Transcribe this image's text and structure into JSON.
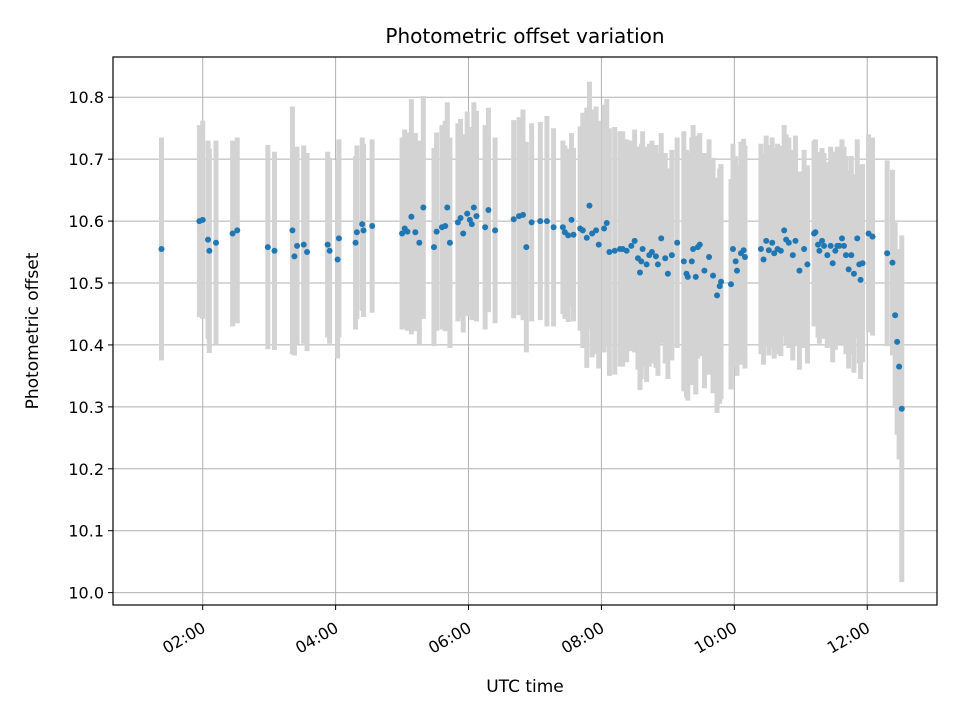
{
  "chart_data": {
    "type": "scatter",
    "title": "Photometric offset variation",
    "xlabel": "UTC time",
    "ylabel": "Photometric offset",
    "xlim": [
      0.65,
      13.05
    ],
    "ylim": [
      9.98,
      10.865
    ],
    "xticks": [
      {
        "value": 2,
        "label": "02:00"
      },
      {
        "value": 4,
        "label": "04:00"
      },
      {
        "value": 6,
        "label": "06:00"
      },
      {
        "value": 8,
        "label": "08:00"
      },
      {
        "value": 10,
        "label": "10:00"
      },
      {
        "value": 12,
        "label": "12:00"
      }
    ],
    "yticks": [
      {
        "value": 10.0,
        "label": "10.0"
      },
      {
        "value": 10.1,
        "label": "10.1"
      },
      {
        "value": 10.2,
        "label": "10.2"
      },
      {
        "value": 10.3,
        "label": "10.3"
      },
      {
        "value": 10.4,
        "label": "10.4"
      },
      {
        "value": 10.5,
        "label": "10.5"
      },
      {
        "value": 10.6,
        "label": "10.6"
      },
      {
        "value": 10.7,
        "label": "10.7"
      },
      {
        "value": 10.8,
        "label": "10.8"
      }
    ],
    "grid": true,
    "colors": {
      "point": "#1f77b4",
      "errorbar": "#d3d3d3",
      "grid": "#b0b0b0"
    },
    "series": [
      {
        "name": "photometric offset",
        "points": [
          [
            1.38,
            10.555,
            0.18
          ],
          [
            1.95,
            10.6,
            0.155
          ],
          [
            2.0,
            10.602,
            0.16
          ],
          [
            2.08,
            10.57,
            0.16
          ],
          [
            2.1,
            10.552,
            0.165
          ],
          [
            2.2,
            10.565,
            0.165
          ],
          [
            2.45,
            10.58,
            0.15
          ],
          [
            2.52,
            10.585,
            0.15
          ],
          [
            2.98,
            10.558,
            0.165
          ],
          [
            3.08,
            10.552,
            0.16
          ],
          [
            3.35,
            10.585,
            0.2
          ],
          [
            3.38,
            10.543,
            0.16
          ],
          [
            3.42,
            10.56,
            0.16
          ],
          [
            3.52,
            10.562,
            0.16
          ],
          [
            3.57,
            10.55,
            0.16
          ],
          [
            3.88,
            10.562,
            0.15
          ],
          [
            3.91,
            10.552,
            0.15
          ],
          [
            4.03,
            10.538,
            0.16
          ],
          [
            4.05,
            10.572,
            0.16
          ],
          [
            4.3,
            10.565,
            0.14
          ],
          [
            4.32,
            10.582,
            0.14
          ],
          [
            4.4,
            10.595,
            0.14
          ],
          [
            4.42,
            10.585,
            0.14
          ],
          [
            4.55,
            10.592,
            0.14
          ],
          [
            5.0,
            10.58,
            0.155
          ],
          [
            5.04,
            10.588,
            0.16
          ],
          [
            5.08,
            10.583,
            0.16
          ],
          [
            5.14,
            10.607,
            0.19
          ],
          [
            5.2,
            10.582,
            0.16
          ],
          [
            5.26,
            10.565,
            0.165
          ],
          [
            5.32,
            10.622,
            0.18
          ],
          [
            5.48,
            10.558,
            0.16
          ],
          [
            5.52,
            10.583,
            0.16
          ],
          [
            5.6,
            10.59,
            0.165
          ],
          [
            5.65,
            10.592,
            0.17
          ],
          [
            5.68,
            10.622,
            0.17
          ],
          [
            5.72,
            10.565,
            0.17
          ],
          [
            5.84,
            10.598,
            0.16
          ],
          [
            5.88,
            10.605,
            0.16
          ],
          [
            5.92,
            10.58,
            0.16
          ],
          [
            5.98,
            10.612,
            0.165
          ],
          [
            6.02,
            10.602,
            0.15
          ],
          [
            6.05,
            10.595,
            0.155
          ],
          [
            6.08,
            10.622,
            0.17
          ],
          [
            6.12,
            10.608,
            0.17
          ],
          [
            6.25,
            10.59,
            0.165
          ],
          [
            6.3,
            10.618,
            0.165
          ],
          [
            6.4,
            10.585,
            0.15
          ],
          [
            6.68,
            10.603,
            0.16
          ],
          [
            6.76,
            10.608,
            0.16
          ],
          [
            6.82,
            10.61,
            0.17
          ],
          [
            6.87,
            10.558,
            0.17
          ],
          [
            6.95,
            10.598,
            0.16
          ],
          [
            7.08,
            10.6,
            0.16
          ],
          [
            7.18,
            10.6,
            0.17
          ],
          [
            7.28,
            10.59,
            0.16
          ],
          [
            7.42,
            10.59,
            0.14
          ],
          [
            7.45,
            10.582,
            0.14
          ],
          [
            7.5,
            10.577,
            0.14
          ],
          [
            7.55,
            10.602,
            0.14
          ],
          [
            7.58,
            10.578,
            0.14
          ],
          [
            7.68,
            10.588,
            0.165
          ],
          [
            7.72,
            10.585,
            0.19
          ],
          [
            7.78,
            10.573,
            0.21
          ],
          [
            7.82,
            10.625,
            0.2
          ],
          [
            7.86,
            10.58,
            0.2
          ],
          [
            7.92,
            10.585,
            0.2
          ],
          [
            7.96,
            10.562,
            0.2
          ],
          [
            8.04,
            10.588,
            0.2
          ],
          [
            8.08,
            10.597,
            0.2
          ],
          [
            8.12,
            10.55,
            0.2
          ],
          [
            8.2,
            10.552,
            0.2
          ],
          [
            8.28,
            10.555,
            0.19
          ],
          [
            8.32,
            10.555,
            0.19
          ],
          [
            8.38,
            10.552,
            0.18
          ],
          [
            8.45,
            10.56,
            0.17
          ],
          [
            8.5,
            10.568,
            0.18
          ],
          [
            8.55,
            10.54,
            0.18
          ],
          [
            8.6,
            10.535,
            0.19
          ],
          [
            8.58,
            10.517,
            0.19
          ],
          [
            8.62,
            10.555,
            0.19
          ],
          [
            8.68,
            10.53,
            0.19
          ],
          [
            8.72,
            10.545,
            0.18
          ],
          [
            8.76,
            10.55,
            0.18
          ],
          [
            8.82,
            10.543,
            0.18
          ],
          [
            8.85,
            10.53,
            0.18
          ],
          [
            8.9,
            10.572,
            0.17
          ],
          [
            8.96,
            10.54,
            0.17
          ],
          [
            9.0,
            10.515,
            0.17
          ],
          [
            9.06,
            10.545,
            0.17
          ],
          [
            9.14,
            10.565,
            0.17
          ],
          [
            9.24,
            10.535,
            0.21
          ],
          [
            9.28,
            10.515,
            0.2
          ],
          [
            9.3,
            10.51,
            0.2
          ],
          [
            9.36,
            10.535,
            0.2
          ],
          [
            9.38,
            10.555,
            0.2
          ],
          [
            9.42,
            10.51,
            0.19
          ],
          [
            9.45,
            10.558,
            0.18
          ],
          [
            9.48,
            10.562,
            0.18
          ],
          [
            9.55,
            10.52,
            0.19
          ],
          [
            9.62,
            10.542,
            0.19
          ],
          [
            9.68,
            10.512,
            0.19
          ],
          [
            9.74,
            10.48,
            0.19
          ],
          [
            9.78,
            10.495,
            0.19
          ],
          [
            9.8,
            10.502,
            0.19
          ],
          [
            9.95,
            10.498,
            0.17
          ],
          [
            9.98,
            10.555,
            0.17
          ],
          [
            10.02,
            10.535,
            0.17
          ],
          [
            10.04,
            10.52,
            0.17
          ],
          [
            10.1,
            10.548,
            0.18
          ],
          [
            10.14,
            10.553,
            0.18
          ],
          [
            10.16,
            10.542,
            0.18
          ],
          [
            10.4,
            10.555,
            0.17
          ],
          [
            10.44,
            10.538,
            0.17
          ],
          [
            10.48,
            10.568,
            0.17
          ],
          [
            10.52,
            10.553,
            0.17
          ],
          [
            10.57,
            10.565,
            0.17
          ],
          [
            10.6,
            10.548,
            0.17
          ],
          [
            10.65,
            10.555,
            0.17
          ],
          [
            10.7,
            10.552,
            0.17
          ],
          [
            10.75,
            10.585,
            0.17
          ],
          [
            10.78,
            10.57,
            0.17
          ],
          [
            10.82,
            10.565,
            0.17
          ],
          [
            10.88,
            10.545,
            0.17
          ],
          [
            10.92,
            10.568,
            0.17
          ],
          [
            10.98,
            10.52,
            0.16
          ],
          [
            11.05,
            10.555,
            0.16
          ],
          [
            11.1,
            10.53,
            0.16
          ],
          [
            11.2,
            10.58,
            0.15
          ],
          [
            11.22,
            10.582,
            0.15
          ],
          [
            11.26,
            10.562,
            0.15
          ],
          [
            11.28,
            10.552,
            0.15
          ],
          [
            11.32,
            10.568,
            0.15
          ],
          [
            11.35,
            10.56,
            0.15
          ],
          [
            11.4,
            10.545,
            0.15
          ],
          [
            11.45,
            10.56,
            0.16
          ],
          [
            11.48,
            10.532,
            0.16
          ],
          [
            11.52,
            10.552,
            0.16
          ],
          [
            11.55,
            10.56,
            0.16
          ],
          [
            11.58,
            10.56,
            0.16
          ],
          [
            11.62,
            10.572,
            0.16
          ],
          [
            11.65,
            10.56,
            0.16
          ],
          [
            11.68,
            10.545,
            0.16
          ],
          [
            11.72,
            10.522,
            0.16
          ],
          [
            11.76,
            10.545,
            0.16
          ],
          [
            11.8,
            10.515,
            0.16
          ],
          [
            11.85,
            10.572,
            0.16
          ],
          [
            11.88,
            10.53,
            0.16
          ],
          [
            11.9,
            10.505,
            0.16
          ],
          [
            11.93,
            10.532,
            0.16
          ],
          [
            12.02,
            10.58,
            0.16
          ],
          [
            12.08,
            10.575,
            0.16
          ],
          [
            12.3,
            10.548,
            0.15
          ],
          [
            12.38,
            10.533,
            0.15
          ],
          [
            12.42,
            10.448,
            0.15
          ],
          [
            12.45,
            10.405,
            0.15
          ],
          [
            12.48,
            10.365,
            0.15
          ],
          [
            12.52,
            10.297,
            0.28
          ]
        ]
      }
    ]
  }
}
